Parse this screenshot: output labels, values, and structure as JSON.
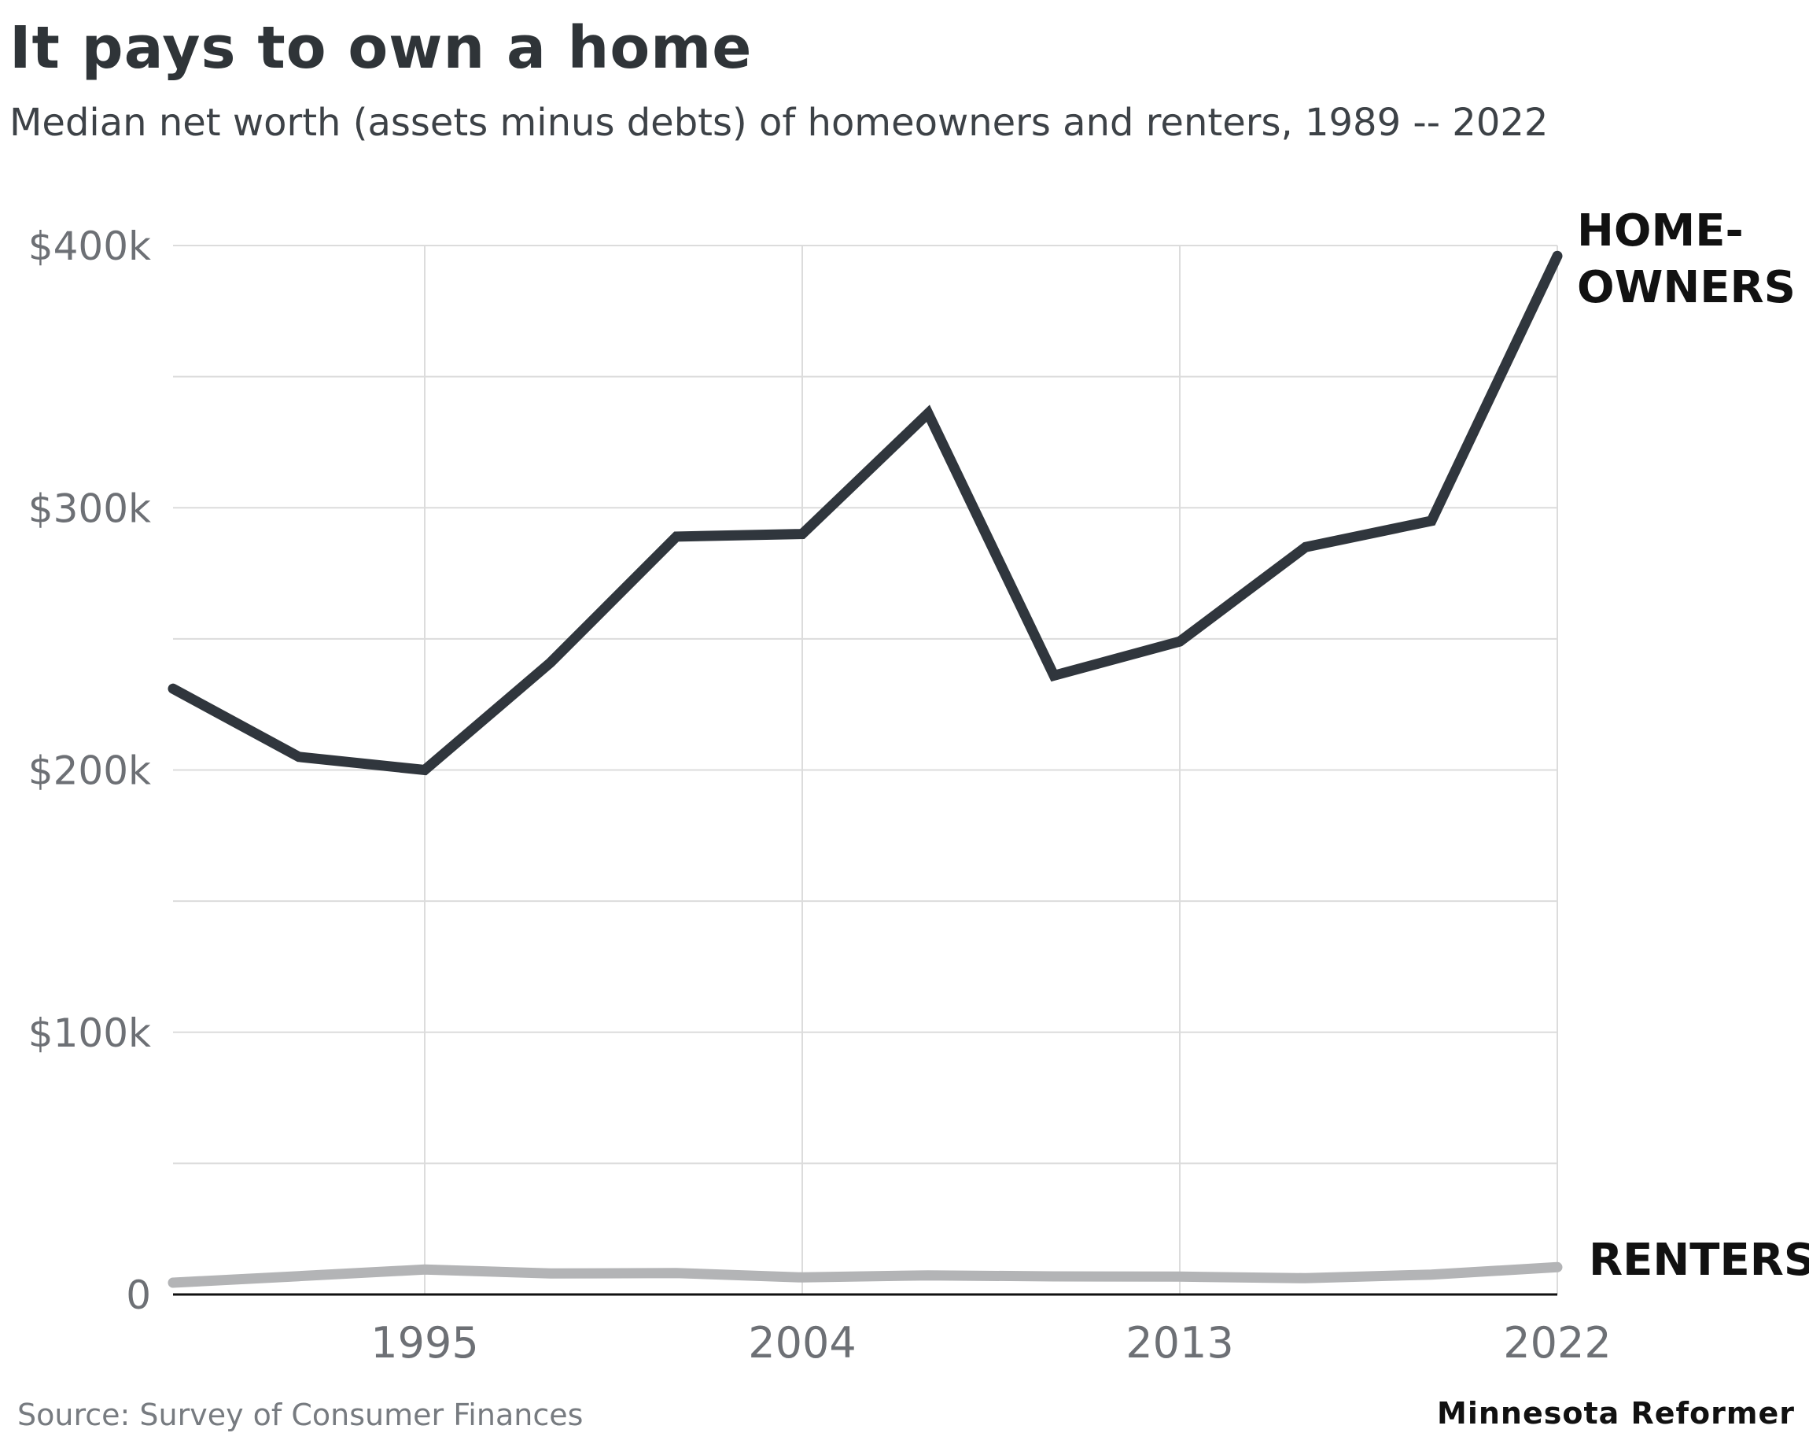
{
  "chart_data": {
    "type": "line",
    "title": "It pays to own a home",
    "subtitle": "Median net worth (assets minus debts) of homeowners and renters, 1989 -- 2022",
    "xlabel": "",
    "ylabel": "",
    "xlim": [
      1989,
      2022
    ],
    "ylim": [
      0,
      400000
    ],
    "grid": true,
    "x": [
      1989,
      1992,
      1995,
      1998,
      2001,
      2004,
      2007,
      2010,
      2013,
      2016,
      2019,
      2022
    ],
    "x_ticks": [
      1995,
      2004,
      2013,
      2022
    ],
    "x_tick_labels": [
      "1995",
      "2004",
      "2013",
      "2022"
    ],
    "y_ticks": [
      0,
      100000,
      200000,
      300000,
      400000
    ],
    "y_tick_labels": [
      "0",
      "$100k",
      "$200k",
      "$300k",
      "$400k"
    ],
    "series": [
      {
        "name": "HOME-OWNERS",
        "label_lines": [
          "HOME-",
          "OWNERS"
        ],
        "color": "#30363d",
        "values": [
          231000,
          205000,
          200000,
          241000,
          289000,
          290000,
          336000,
          236000,
          249000,
          285000,
          295000,
          396000
        ]
      },
      {
        "name": "RENTERS",
        "label_lines": [
          "RENTERS"
        ],
        "color": "#b3b4b6",
        "values": [
          4500,
          7000,
          9500,
          8000,
          8200,
          6500,
          7300,
          6900,
          6800,
          6200,
          7600,
          10400
        ]
      }
    ],
    "source": "Source: Survey of Consumer Finances",
    "brand": "Minnesota Reformer"
  }
}
